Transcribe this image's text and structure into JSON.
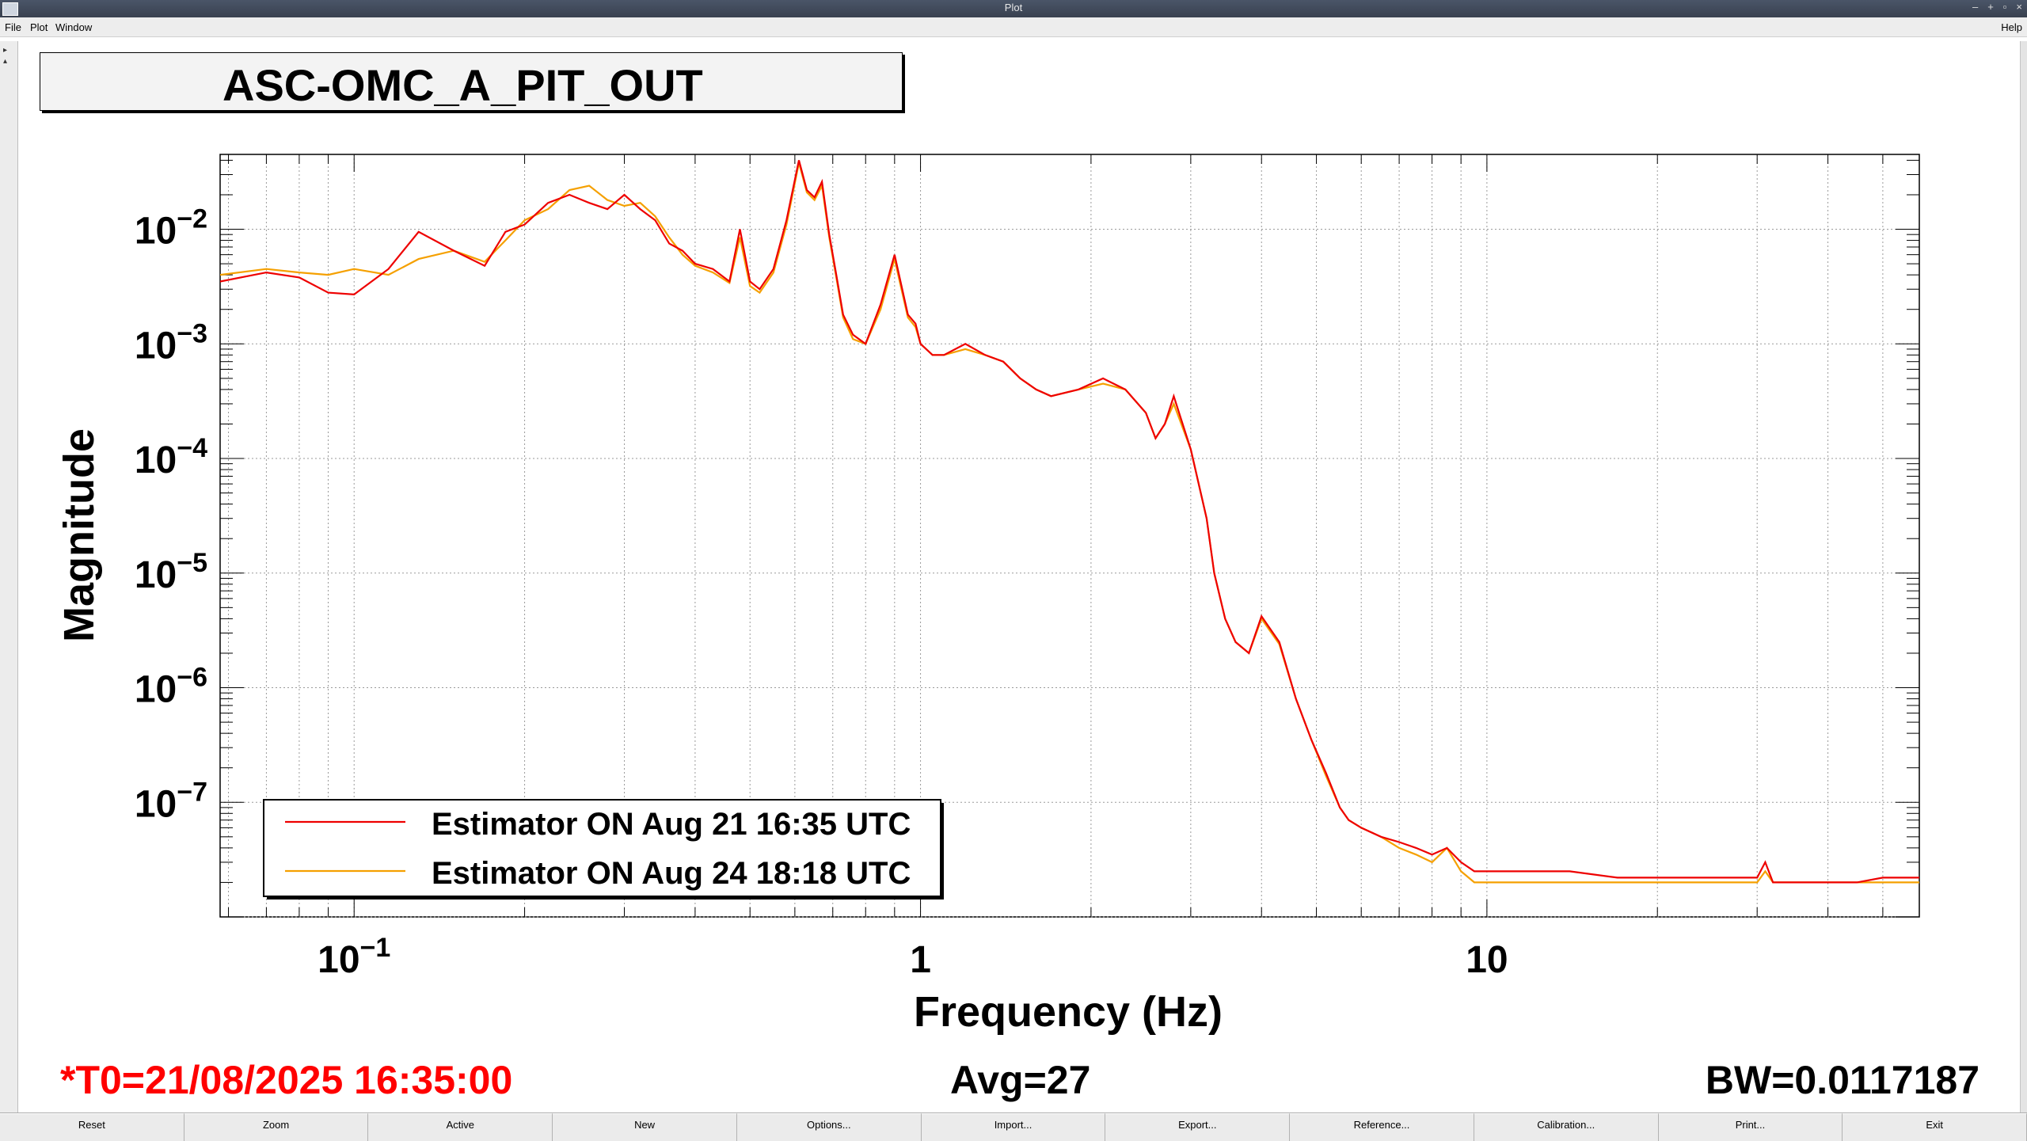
{
  "window": {
    "title": "Plot",
    "buttons": [
      "–",
      "+",
      "▫",
      "×"
    ]
  },
  "menu": {
    "file": "File",
    "plot": "Plot",
    "window": "Window",
    "help": "Help"
  },
  "plot_title": "ASC-OMC_A_PIT_OUT",
  "footer": {
    "t0": "*T0=21/08/2025 16:35:00",
    "avg": "Avg=27",
    "bw": "BW=0.0117187"
  },
  "colors": {
    "series1": "#ee0000",
    "series2": "#f5a000",
    "t0_text": "#ff0000"
  },
  "buttons": [
    "Reset",
    "Zoom",
    "Active",
    "New",
    "Options...",
    "Import...",
    "Export...",
    "Reference...",
    "Calibration...",
    "Print...",
    "Exit"
  ],
  "chart_data": {
    "type": "line",
    "title": "ASC-OMC_A_PIT_OUT",
    "xlabel": "Frequency (Hz)",
    "ylabel": "Magnitude",
    "xscale": "log",
    "yscale": "log",
    "xlim": [
      0.058,
      58
    ],
    "ylim": [
      1e-08,
      0.045
    ],
    "xticks": [
      {
        "value": 0.1,
        "base": "10",
        "exp": "−1"
      },
      {
        "value": 1,
        "base": "1",
        "exp": ""
      },
      {
        "value": 10,
        "base": "10",
        "exp": ""
      }
    ],
    "yticks": [
      {
        "value": 0.01,
        "base": "10",
        "exp": "−2"
      },
      {
        "value": 0.001,
        "base": "10",
        "exp": "−3"
      },
      {
        "value": 0.0001,
        "base": "10",
        "exp": "−4"
      },
      {
        "value": 1e-05,
        "base": "10",
        "exp": "−5"
      },
      {
        "value": 1e-06,
        "base": "10",
        "exp": "−6"
      },
      {
        "value": 1e-07,
        "base": "10",
        "exp": "−7"
      }
    ],
    "grid": true,
    "legend_position": "bottom-left",
    "series": [
      {
        "name": "Estimator ON Aug 21 16:35 UTC",
        "color": "#ee0000",
        "x": [
          0.058,
          0.07,
          0.08,
          0.09,
          0.1,
          0.115,
          0.13,
          0.15,
          0.17,
          0.185,
          0.2,
          0.22,
          0.24,
          0.26,
          0.28,
          0.3,
          0.32,
          0.34,
          0.36,
          0.38,
          0.4,
          0.43,
          0.46,
          0.48,
          0.5,
          0.52,
          0.55,
          0.58,
          0.61,
          0.63,
          0.65,
          0.67,
          0.69,
          0.71,
          0.73,
          0.76,
          0.8,
          0.85,
          0.9,
          0.95,
          0.98,
          1.0,
          1.05,
          1.1,
          1.2,
          1.3,
          1.4,
          1.5,
          1.6,
          1.7,
          1.9,
          2.1,
          2.3,
          2.5,
          2.6,
          2.7,
          2.8,
          3.0,
          3.2,
          3.3,
          3.45,
          3.6,
          3.8,
          4.0,
          4.3,
          4.6,
          4.9,
          5.2,
          5.5,
          5.7,
          6.0,
          6.5,
          7.0,
          7.5,
          8.0,
          8.5,
          9.0,
          9.5,
          10,
          11,
          12,
          14,
          17,
          20,
          25,
          30,
          31,
          32,
          35,
          40,
          45,
          50,
          58
        ],
        "y": [
          0.0035,
          0.0042,
          0.0038,
          0.0028,
          0.0027,
          0.0045,
          0.0095,
          0.0065,
          0.0048,
          0.0095,
          0.011,
          0.017,
          0.02,
          0.017,
          0.015,
          0.02,
          0.015,
          0.012,
          0.0075,
          0.0065,
          0.005,
          0.0045,
          0.0035,
          0.01,
          0.0035,
          0.003,
          0.0045,
          0.012,
          0.04,
          0.022,
          0.019,
          0.026,
          0.009,
          0.004,
          0.0018,
          0.0012,
          0.001,
          0.0022,
          0.006,
          0.0018,
          0.0015,
          0.001,
          0.0008,
          0.0008,
          0.001,
          0.0008,
          0.0007,
          0.0005,
          0.0004,
          0.00035,
          0.0004,
          0.0005,
          0.0004,
          0.00025,
          0.00015,
          0.0002,
          0.00035,
          0.00012,
          3e-05,
          1e-05,
          4e-06,
          2.5e-06,
          2e-06,
          4.2e-06,
          2.5e-06,
          8e-07,
          3.5e-07,
          1.8e-07,
          9e-08,
          7e-08,
          6e-08,
          5e-08,
          4.5e-08,
          4e-08,
          3.5e-08,
          4e-08,
          3e-08,
          2.5e-08,
          2.5e-08,
          2.5e-08,
          2.5e-08,
          2.5e-08,
          2.2e-08,
          2.2e-08,
          2.2e-08,
          2.2e-08,
          3e-08,
          2e-08,
          2e-08,
          2e-08,
          2e-08,
          2.2e-08,
          2.2e-08
        ]
      },
      {
        "name": "Estimator ON Aug 24 18:18 UTC",
        "color": "#f5a000",
        "x": [
          0.058,
          0.07,
          0.08,
          0.09,
          0.1,
          0.115,
          0.13,
          0.15,
          0.17,
          0.185,
          0.2,
          0.22,
          0.24,
          0.26,
          0.28,
          0.3,
          0.32,
          0.34,
          0.36,
          0.38,
          0.4,
          0.43,
          0.46,
          0.48,
          0.5,
          0.52,
          0.55,
          0.58,
          0.61,
          0.63,
          0.65,
          0.67,
          0.69,
          0.71,
          0.73,
          0.76,
          0.8,
          0.85,
          0.9,
          0.95,
          0.98,
          1.0,
          1.05,
          1.1,
          1.2,
          1.3,
          1.4,
          1.5,
          1.6,
          1.7,
          1.9,
          2.1,
          2.3,
          2.5,
          2.6,
          2.7,
          2.8,
          3.0,
          3.2,
          3.3,
          3.45,
          3.6,
          3.8,
          4.0,
          4.3,
          4.6,
          4.9,
          5.2,
          5.5,
          5.7,
          6.0,
          6.5,
          7.0,
          7.5,
          8.0,
          8.5,
          9.0,
          9.5,
          10,
          11,
          12,
          14,
          17,
          20,
          25,
          30,
          31,
          32,
          35,
          40,
          45,
          50,
          58
        ],
        "y": [
          0.004,
          0.0045,
          0.0042,
          0.004,
          0.0045,
          0.004,
          0.0055,
          0.0065,
          0.0052,
          0.008,
          0.012,
          0.015,
          0.022,
          0.024,
          0.018,
          0.016,
          0.017,
          0.013,
          0.0085,
          0.006,
          0.0048,
          0.0042,
          0.0034,
          0.0085,
          0.0032,
          0.0028,
          0.0042,
          0.011,
          0.038,
          0.021,
          0.018,
          0.024,
          0.0085,
          0.0038,
          0.0017,
          0.0011,
          0.001,
          0.002,
          0.0055,
          0.0017,
          0.0014,
          0.001,
          0.0008,
          0.0008,
          0.0009,
          0.0008,
          0.0007,
          0.0005,
          0.0004,
          0.00035,
          0.0004,
          0.00045,
          0.0004,
          0.00025,
          0.00015,
          0.0002,
          0.0003,
          0.00012,
          3e-05,
          1e-05,
          4e-06,
          2.5e-06,
          2e-06,
          4e-06,
          2.4e-06,
          8e-07,
          3.5e-07,
          1.7e-07,
          9e-08,
          7e-08,
          6e-08,
          5e-08,
          4e-08,
          3.5e-08,
          3e-08,
          4e-08,
          2.5e-08,
          2e-08,
          2e-08,
          2e-08,
          2e-08,
          2e-08,
          2e-08,
          2e-08,
          2e-08,
          2e-08,
          2.5e-08,
          2e-08,
          2e-08,
          2e-08,
          2e-08,
          2e-08,
          2e-08
        ]
      }
    ]
  }
}
